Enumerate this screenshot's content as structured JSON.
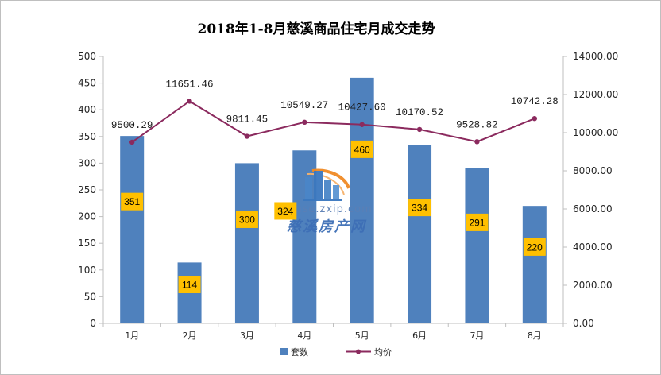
{
  "chart_data": {
    "type": "bar+line",
    "title": "2018年1-8月慈溪商品住宅月成交走势",
    "categories": [
      "1月",
      "2月",
      "3月",
      "4月",
      "5月",
      "6月",
      "7月",
      "8月"
    ],
    "series": [
      {
        "name": "套数",
        "type": "bar",
        "axis": "left",
        "color": "#4f81bd",
        "values": [
          351,
          114,
          300,
          324,
          460,
          334,
          291,
          220
        ],
        "labels": [
          "351",
          "114",
          "300",
          "324",
          "460",
          "334",
          "291",
          "220"
        ]
      },
      {
        "name": "均价",
        "type": "line",
        "axis": "right",
        "color": "#8b2a5e",
        "values": [
          9500.29,
          11651.46,
          9811.45,
          10549.27,
          10427.6,
          10170.52,
          9528.82,
          10742.28
        ],
        "labels": [
          "9500.29",
          "11651.46",
          "9811.45",
          "10549.27",
          "10427.60",
          "10170.52",
          "9528.82",
          "10742.28"
        ]
      }
    ],
    "y_left": {
      "min": 0,
      "max": 500,
      "step": 50,
      "ticks": [
        "0",
        "50",
        "100",
        "150",
        "200",
        "250",
        "300",
        "350",
        "400",
        "450",
        "500"
      ]
    },
    "y_right": {
      "min": 0,
      "max": 14000,
      "step": 2000,
      "ticks": [
        "0.00",
        "2000.00",
        "4000.00",
        "6000.00",
        "8000.00",
        "10000.00",
        "12000.00",
        "14000.00"
      ]
    },
    "legend": {
      "position": "bottom",
      "items": [
        "套数",
        "均价"
      ]
    },
    "count_label_bg": "#ffc000",
    "grid": false
  },
  "watermark": {
    "url": "house.zxip.com",
    "name": "慈溪房产网"
  }
}
